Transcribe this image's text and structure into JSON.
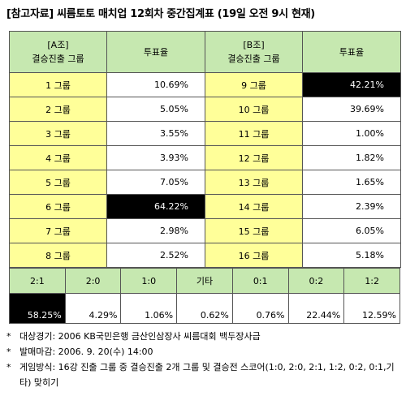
{
  "title": "[참고자료] 씨름토토 매치업 12회차 중간집계표 (19일 오전 9시 현재)",
  "group_a": {
    "header_line1": "[A조]",
    "header_line2": "결승진출 그룹",
    "vote_header": "투표율",
    "rows": [
      {
        "group": "1 그룹",
        "pct": "10.69%"
      },
      {
        "group": "2 그룹",
        "pct": "5.05%"
      },
      {
        "group": "3 그룹",
        "pct": "3.55%"
      },
      {
        "group": "4 그룹",
        "pct": "3.93%"
      },
      {
        "group": "5 그룹",
        "pct": "7.05%"
      },
      {
        "group": "6 그룹",
        "pct": "64.22%"
      },
      {
        "group": "7 그룹",
        "pct": "2.98%"
      },
      {
        "group": "8 그룹",
        "pct": "2.52%"
      }
    ]
  },
  "group_b": {
    "header_line1": "[B조]",
    "header_line2": "결승진출 그룹",
    "vote_header": "투표율",
    "rows": [
      {
        "group": "9 그룹",
        "pct": "42.21%"
      },
      {
        "group": "10 그룹",
        "pct": "39.69%"
      },
      {
        "group": "11 그룹",
        "pct": "1.00%"
      },
      {
        "group": "12 그룹",
        "pct": "1.82%"
      },
      {
        "group": "13 그룹",
        "pct": "1.65%"
      },
      {
        "group": "14 그룹",
        "pct": "2.39%"
      },
      {
        "group": "15 그룹",
        "pct": "6.05%"
      },
      {
        "group": "16 그룹",
        "pct": "5.18%"
      }
    ]
  },
  "scores": [
    {
      "label": "2:1",
      "pct": "58.25%"
    },
    {
      "label": "2:0",
      "pct": "4.29%"
    },
    {
      "label": "1:0",
      "pct": "1.06%"
    },
    {
      "label": "기타",
      "pct": "0.62%"
    },
    {
      "label": "0:1",
      "pct": "0.76%"
    },
    {
      "label": "0:2",
      "pct": "22.44%"
    },
    {
      "label": "1:2",
      "pct": "12.59%"
    }
  ],
  "notes": {
    "bullet": "*",
    "items": [
      "대상경기: 2006 KB국민은행 금산인삼장사 씨름대회 백두장사급",
      "발매마감: 2006. 9. 20(수) 14:00",
      "게임방식: 16강 진출 그룹 중 결승진출 2개 그룹 및 결승전 스코어(1:0, 2:0, 2:1, 1:2, 0:2, 0:1,기타) 맞히기"
    ]
  },
  "colors": {
    "header_green": "#c6e8b0",
    "group_yellow": "#ffff99",
    "highlight_black": "#000000"
  }
}
